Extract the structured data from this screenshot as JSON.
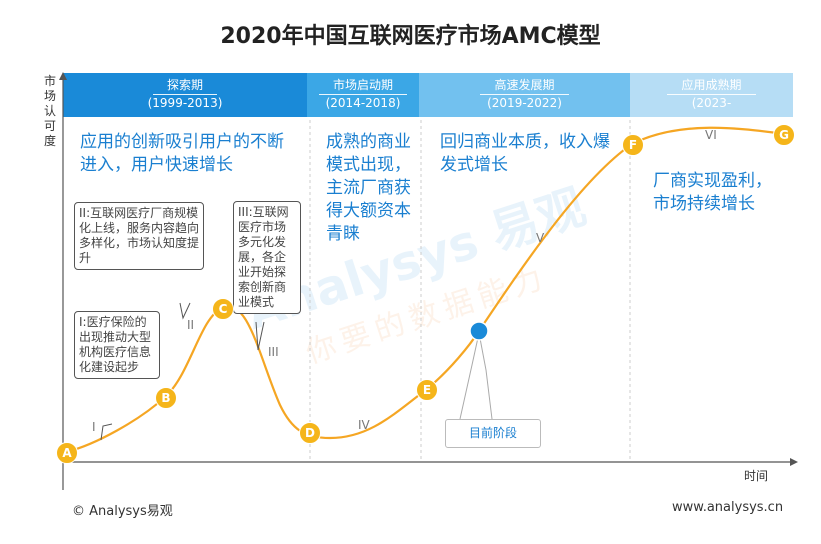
{
  "title": "2020年中国互联网医疗市场AMC模型",
  "y_axis_label": "市场认可度",
  "x_axis_label": "时间",
  "colors": {
    "phase1": "#1a8ad8",
    "phase2": "#3ba7e6",
    "phase3": "#72c1ef",
    "phase4": "#b6ddf5",
    "curve": "#f5a623",
    "point": "#f5b51a",
    "current": "#1a8ad8",
    "text_blue": "#1a7fd0"
  },
  "phases": [
    {
      "name": "探索期",
      "years": "(1999-2013)"
    },
    {
      "name": "市场启动期",
      "years": "(2014-2018)"
    },
    {
      "name": "高速发展期",
      "years": "(2019-2022)"
    },
    {
      "name": "应用成熟期",
      "years": "(2023-"
    }
  ],
  "descriptions": [
    "应用的创新吸引用户的不断进入，用户快速增长",
    "成熟的商业模式出现，主流厂商获得大额资本青睐",
    "回归商业本质，收入爆发式增长",
    "厂商实现盈利，市场持续增长"
  ],
  "bubbles": [
    "II:互联网医疗厂商规模化上线，服务内容趋向多样化，市场认知度提升",
    "III:互联网医疗市场多元化发展，各企业开始探索创新商业模式",
    "I:医疗保险的出现推动大型机构医疗信息化建设起步"
  ],
  "segments": [
    "I",
    "II",
    "III",
    "IV",
    "V",
    "VI"
  ],
  "points": [
    "A",
    "B",
    "C",
    "D",
    "E",
    "F",
    "G"
  ],
  "current_stage": "目前阶段",
  "copyright": "© Analysys易观",
  "website": "www.analysys.cn",
  "watermark": {
    "line1": "Analysys 易观",
    "line2": "你要的数据能力"
  },
  "chart_data": {
    "type": "line",
    "title": "2020年中国互联网医疗市场AMC模型",
    "xlabel": "时间",
    "ylabel": "市场认可度",
    "series": [
      {
        "points": [
          "A",
          "B",
          "C",
          "D",
          "E",
          "F",
          "G"
        ]
      }
    ],
    "current_position": "目前阶段",
    "grid": false
  }
}
